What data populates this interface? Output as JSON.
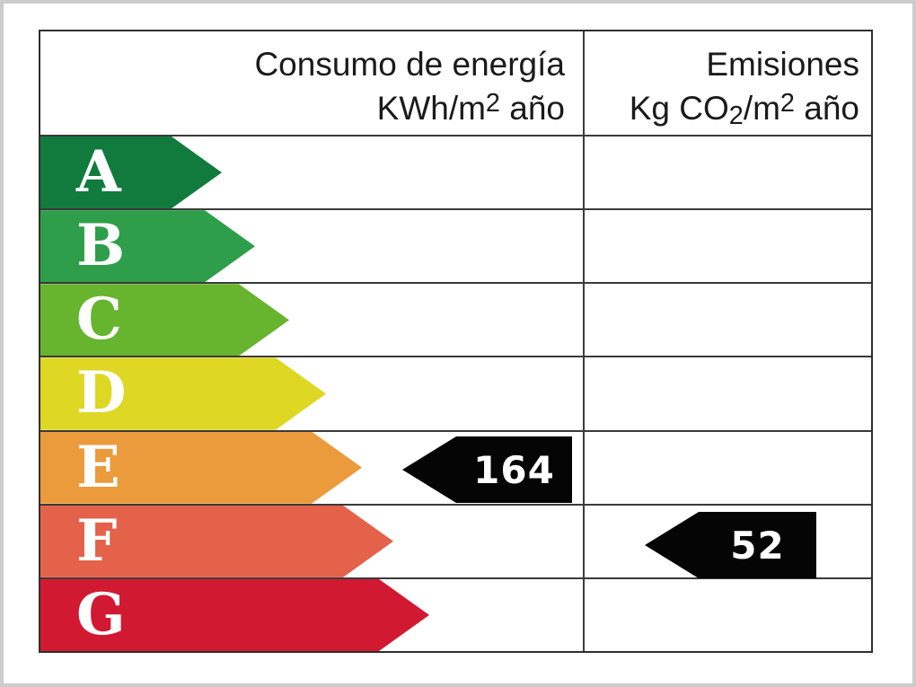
{
  "header": {
    "consumption": {
      "line1": "Consumo de energía",
      "line2": {
        "pre": "KWh/m",
        "sup": "2",
        "post": " año"
      }
    },
    "emissions": {
      "line1": "Emisiones",
      "line2": {
        "pre": "Kg CO",
        "sub": "2",
        "mid": "/m",
        "sup": "2",
        "post": " año"
      }
    }
  },
  "ratings": [
    {
      "letter": "A",
      "color": "#117b3e"
    },
    {
      "letter": "B",
      "color": "#2e9e4a"
    },
    {
      "letter": "C",
      "color": "#67b42f"
    },
    {
      "letter": "D",
      "color": "#ded723"
    },
    {
      "letter": "E",
      "color": "#eb9b3c"
    },
    {
      "letter": "F",
      "color": "#e4614a"
    },
    {
      "letter": "G",
      "color": "#d11a32"
    }
  ],
  "indicators": {
    "consumption": {
      "value": "164",
      "rating": "E",
      "color": "#050505"
    },
    "emissions": {
      "value": "52",
      "rating": "F",
      "color": "#050505"
    }
  },
  "chart_data": {
    "type": "bar",
    "title": "Energy efficiency rating label (Spanish energy certificate)",
    "columns": [
      {
        "label": "Consumo de energía KWh/m2 año",
        "value": 164,
        "rating": "E"
      },
      {
        "label": "Emisiones Kg CO2/m2 año",
        "value": 52,
        "rating": "F"
      }
    ],
    "scale": {
      "categories": [
        "A",
        "B",
        "C",
        "D",
        "E",
        "F",
        "G"
      ],
      "colors": [
        "#117b3e",
        "#2e9e4a",
        "#67b42f",
        "#ded723",
        "#eb9b3c",
        "#e4614a",
        "#d11a32"
      ],
      "note": "arrow length increases from A (best) to G (worst)"
    },
    "indicator_color": "#050505",
    "legend_position": "none",
    "grid": "table lines"
  }
}
